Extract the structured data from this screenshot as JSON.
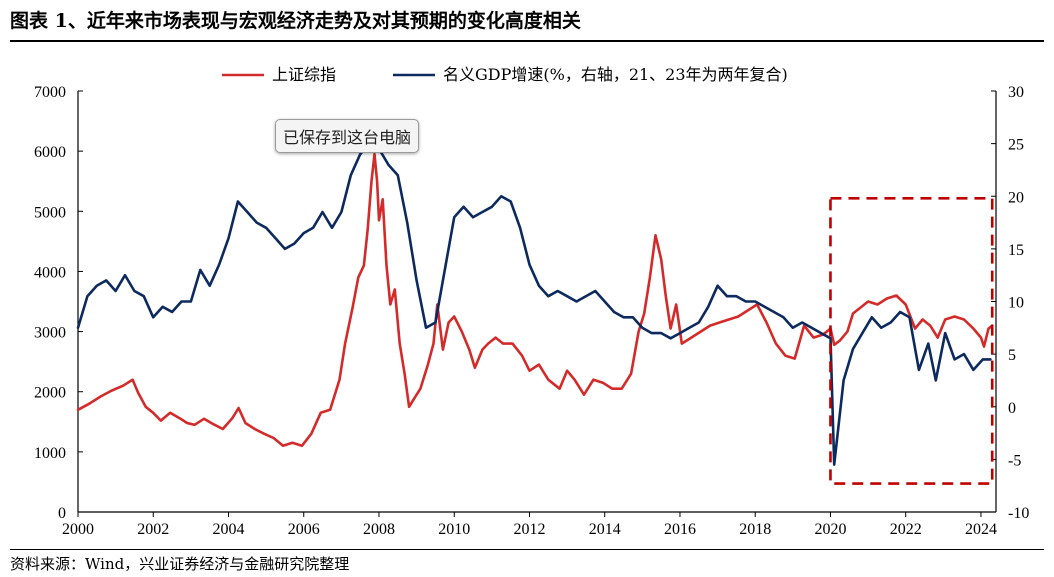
{
  "header": {
    "title": "图表 1、近年来市场表现与宏观经济走势及对其预期的变化高度相关"
  },
  "footer": {
    "source": "资料来源：Wind，兴业证券经济与金融研究院整理"
  },
  "overlay": {
    "tooltip": "已保存到这台电脑"
  },
  "chart_data": {
    "type": "line",
    "title": "图表 1、近年来市场表现与宏观经济走势及对其预期的变化高度相关",
    "xlim": [
      2000,
      2024.4
    ],
    "x_ticks": [
      "2000",
      "2002",
      "2004",
      "2006",
      "2008",
      "2010",
      "2012",
      "2014",
      "2016",
      "2018",
      "2020",
      "2022",
      "2024"
    ],
    "y_left_lim": [
      0,
      7000
    ],
    "y_left_ticks": [
      "0",
      "1000",
      "2000",
      "3000",
      "4000",
      "5000",
      "6000",
      "7000"
    ],
    "y_right_lim": [
      -10,
      30
    ],
    "y_right_ticks": [
      "-10",
      "-5",
      "0",
      "5",
      "10",
      "15",
      "20",
      "25",
      "30"
    ],
    "grid": false,
    "legend_position": "top-center",
    "highlight_box": {
      "x_range": [
        2020.0,
        2024.3
      ],
      "y_right_range": [
        -7.3,
        19.8
      ],
      "color": "#c00000"
    },
    "series": [
      {
        "name": "上证综指",
        "axis": "left",
        "color": "#d42a2a",
        "points": [
          [
            2000.0,
            1700
          ],
          [
            2000.3,
            1800
          ],
          [
            2000.6,
            1920
          ],
          [
            2000.9,
            2020
          ],
          [
            2001.2,
            2100
          ],
          [
            2001.45,
            2200
          ],
          [
            2001.6,
            1980
          ],
          [
            2001.8,
            1750
          ],
          [
            2002.0,
            1650
          ],
          [
            2002.2,
            1520
          ],
          [
            2002.45,
            1650
          ],
          [
            2002.7,
            1560
          ],
          [
            2002.9,
            1480
          ],
          [
            2003.1,
            1450
          ],
          [
            2003.35,
            1550
          ],
          [
            2003.6,
            1460
          ],
          [
            2003.85,
            1380
          ],
          [
            2004.1,
            1560
          ],
          [
            2004.27,
            1730
          ],
          [
            2004.45,
            1480
          ],
          [
            2004.7,
            1380
          ],
          [
            2004.95,
            1300
          ],
          [
            2005.2,
            1230
          ],
          [
            2005.45,
            1100
          ],
          [
            2005.7,
            1150
          ],
          [
            2005.95,
            1100
          ],
          [
            2006.2,
            1300
          ],
          [
            2006.45,
            1650
          ],
          [
            2006.7,
            1700
          ],
          [
            2006.95,
            2200
          ],
          [
            2007.1,
            2800
          ],
          [
            2007.3,
            3400
          ],
          [
            2007.45,
            3900
          ],
          [
            2007.6,
            4100
          ],
          [
            2007.7,
            4700
          ],
          [
            2007.8,
            5500
          ],
          [
            2007.88,
            5950
          ],
          [
            2007.95,
            5500
          ],
          [
            2008.0,
            4850
          ],
          [
            2008.1,
            5200
          ],
          [
            2008.2,
            4100
          ],
          [
            2008.3,
            3450
          ],
          [
            2008.42,
            3700
          ],
          [
            2008.55,
            2800
          ],
          [
            2008.68,
            2300
          ],
          [
            2008.8,
            1750
          ],
          [
            2008.95,
            1900
          ],
          [
            2009.1,
            2050
          ],
          [
            2009.3,
            2450
          ],
          [
            2009.45,
            2800
          ],
          [
            2009.55,
            3450
          ],
          [
            2009.7,
            2700
          ],
          [
            2009.85,
            3150
          ],
          [
            2010.0,
            3250
          ],
          [
            2010.2,
            3000
          ],
          [
            2010.4,
            2700
          ],
          [
            2010.55,
            2400
          ],
          [
            2010.75,
            2700
          ],
          [
            2010.9,
            2800
          ],
          [
            2011.1,
            2900
          ],
          [
            2011.3,
            2800
          ],
          [
            2011.55,
            2800
          ],
          [
            2011.8,
            2600
          ],
          [
            2012.0,
            2350
          ],
          [
            2012.25,
            2450
          ],
          [
            2012.5,
            2200
          ],
          [
            2012.8,
            2050
          ],
          [
            2013.0,
            2350
          ],
          [
            2013.2,
            2200
          ],
          [
            2013.45,
            1950
          ],
          [
            2013.7,
            2200
          ],
          [
            2013.95,
            2150
          ],
          [
            2014.2,
            2050
          ],
          [
            2014.45,
            2050
          ],
          [
            2014.7,
            2300
          ],
          [
            2014.9,
            3000
          ],
          [
            2015.05,
            3300
          ],
          [
            2015.2,
            3900
          ],
          [
            2015.35,
            4600
          ],
          [
            2015.5,
            4200
          ],
          [
            2015.62,
            3600
          ],
          [
            2015.75,
            3050
          ],
          [
            2015.9,
            3450
          ],
          [
            2016.05,
            2800
          ],
          [
            2016.3,
            2900
          ],
          [
            2016.55,
            3000
          ],
          [
            2016.8,
            3100
          ],
          [
            2017.05,
            3150
          ],
          [
            2017.3,
            3200
          ],
          [
            2017.55,
            3250
          ],
          [
            2017.8,
            3350
          ],
          [
            2018.05,
            3450
          ],
          [
            2018.3,
            3150
          ],
          [
            2018.55,
            2800
          ],
          [
            2018.8,
            2600
          ],
          [
            2019.05,
            2550
          ],
          [
            2019.3,
            3100
          ],
          [
            2019.55,
            2900
          ],
          [
            2019.8,
            2950
          ],
          [
            2020.0,
            3050
          ],
          [
            2020.1,
            2780
          ],
          [
            2020.25,
            2850
          ],
          [
            2020.45,
            3000
          ],
          [
            2020.6,
            3300
          ],
          [
            2020.8,
            3400
          ],
          [
            2021.0,
            3500
          ],
          [
            2021.25,
            3450
          ],
          [
            2021.5,
            3550
          ],
          [
            2021.75,
            3600
          ],
          [
            2022.0,
            3450
          ],
          [
            2022.25,
            3050
          ],
          [
            2022.45,
            3200
          ],
          [
            2022.65,
            3100
          ],
          [
            2022.85,
            2900
          ],
          [
            2023.05,
            3200
          ],
          [
            2023.3,
            3250
          ],
          [
            2023.55,
            3200
          ],
          [
            2023.8,
            3050
          ],
          [
            2024.0,
            2900
          ],
          [
            2024.08,
            2750
          ],
          [
            2024.2,
            3050
          ],
          [
            2024.3,
            3100
          ]
        ]
      },
      {
        "name": "名义GDP增速(%，右轴，21、23年为两年复合)",
        "axis": "right",
        "color": "#0d2a5e",
        "points": [
          [
            2000.0,
            7.5
          ],
          [
            2000.25,
            10.5
          ],
          [
            2000.5,
            11.5
          ],
          [
            2000.75,
            12.0
          ],
          [
            2001.0,
            11.0
          ],
          [
            2001.25,
            12.5
          ],
          [
            2001.5,
            11.0
          ],
          [
            2001.75,
            10.5
          ],
          [
            2002.0,
            8.5
          ],
          [
            2002.25,
            9.5
          ],
          [
            2002.5,
            9.0
          ],
          [
            2002.75,
            10.0
          ],
          [
            2003.0,
            10.0
          ],
          [
            2003.25,
            13.0
          ],
          [
            2003.5,
            11.5
          ],
          [
            2003.75,
            13.5
          ],
          [
            2004.0,
            16.0
          ],
          [
            2004.25,
            19.5
          ],
          [
            2004.5,
            18.5
          ],
          [
            2004.75,
            17.5
          ],
          [
            2005.0,
            17.0
          ],
          [
            2005.25,
            16.0
          ],
          [
            2005.5,
            15.0
          ],
          [
            2005.75,
            15.5
          ],
          [
            2006.0,
            16.5
          ],
          [
            2006.25,
            17.0
          ],
          [
            2006.5,
            18.5
          ],
          [
            2006.75,
            17.0
          ],
          [
            2007.0,
            18.5
          ],
          [
            2007.25,
            22.0
          ],
          [
            2007.5,
            24.0
          ],
          [
            2007.75,
            25.0
          ],
          [
            2008.0,
            24.5
          ],
          [
            2008.25,
            23.0
          ],
          [
            2008.5,
            22.0
          ],
          [
            2008.75,
            17.5
          ],
          [
            2009.0,
            12.0
          ],
          [
            2009.25,
            7.5
          ],
          [
            2009.5,
            8.0
          ],
          [
            2009.75,
            13.0
          ],
          [
            2010.0,
            18.0
          ],
          [
            2010.25,
            19.0
          ],
          [
            2010.5,
            18.0
          ],
          [
            2010.75,
            18.5
          ],
          [
            2011.0,
            19.0
          ],
          [
            2011.25,
            20.0
          ],
          [
            2011.5,
            19.5
          ],
          [
            2011.75,
            17.0
          ],
          [
            2012.0,
            13.5
          ],
          [
            2012.25,
            11.5
          ],
          [
            2012.5,
            10.5
          ],
          [
            2012.75,
            11.0
          ],
          [
            2013.0,
            10.5
          ],
          [
            2013.25,
            10.0
          ],
          [
            2013.5,
            10.5
          ],
          [
            2013.75,
            11.0
          ],
          [
            2014.0,
            10.0
          ],
          [
            2014.25,
            9.0
          ],
          [
            2014.5,
            8.5
          ],
          [
            2014.75,
            8.5
          ],
          [
            2015.0,
            7.5
          ],
          [
            2015.25,
            7.0
          ],
          [
            2015.5,
            7.0
          ],
          [
            2015.75,
            6.5
          ],
          [
            2016.0,
            7.0
          ],
          [
            2016.25,
            7.5
          ],
          [
            2016.5,
            8.0
          ],
          [
            2016.75,
            9.5
          ],
          [
            2017.0,
            11.5
          ],
          [
            2017.25,
            10.5
          ],
          [
            2017.5,
            10.5
          ],
          [
            2017.75,
            10.0
          ],
          [
            2018.0,
            10.0
          ],
          [
            2018.25,
            9.5
          ],
          [
            2018.5,
            9.0
          ],
          [
            2018.75,
            8.5
          ],
          [
            2019.0,
            7.5
          ],
          [
            2019.25,
            8.0
          ],
          [
            2019.5,
            7.5
          ],
          [
            2019.75,
            7.0
          ],
          [
            2020.0,
            6.5
          ],
          [
            2020.1,
            -5.5
          ],
          [
            2020.35,
            2.5
          ],
          [
            2020.6,
            5.5
          ],
          [
            2020.85,
            7.0
          ],
          [
            2021.1,
            8.5
          ],
          [
            2021.35,
            7.5
          ],
          [
            2021.6,
            8.0
          ],
          [
            2021.85,
            9.0
          ],
          [
            2022.1,
            8.5
          ],
          [
            2022.35,
            3.5
          ],
          [
            2022.6,
            6.0
          ],
          [
            2022.8,
            2.5
          ],
          [
            2023.05,
            7.0
          ],
          [
            2023.3,
            4.5
          ],
          [
            2023.55,
            5.0
          ],
          [
            2023.8,
            3.5
          ],
          [
            2024.05,
            4.5
          ],
          [
            2024.25,
            4.5
          ]
        ]
      }
    ]
  }
}
